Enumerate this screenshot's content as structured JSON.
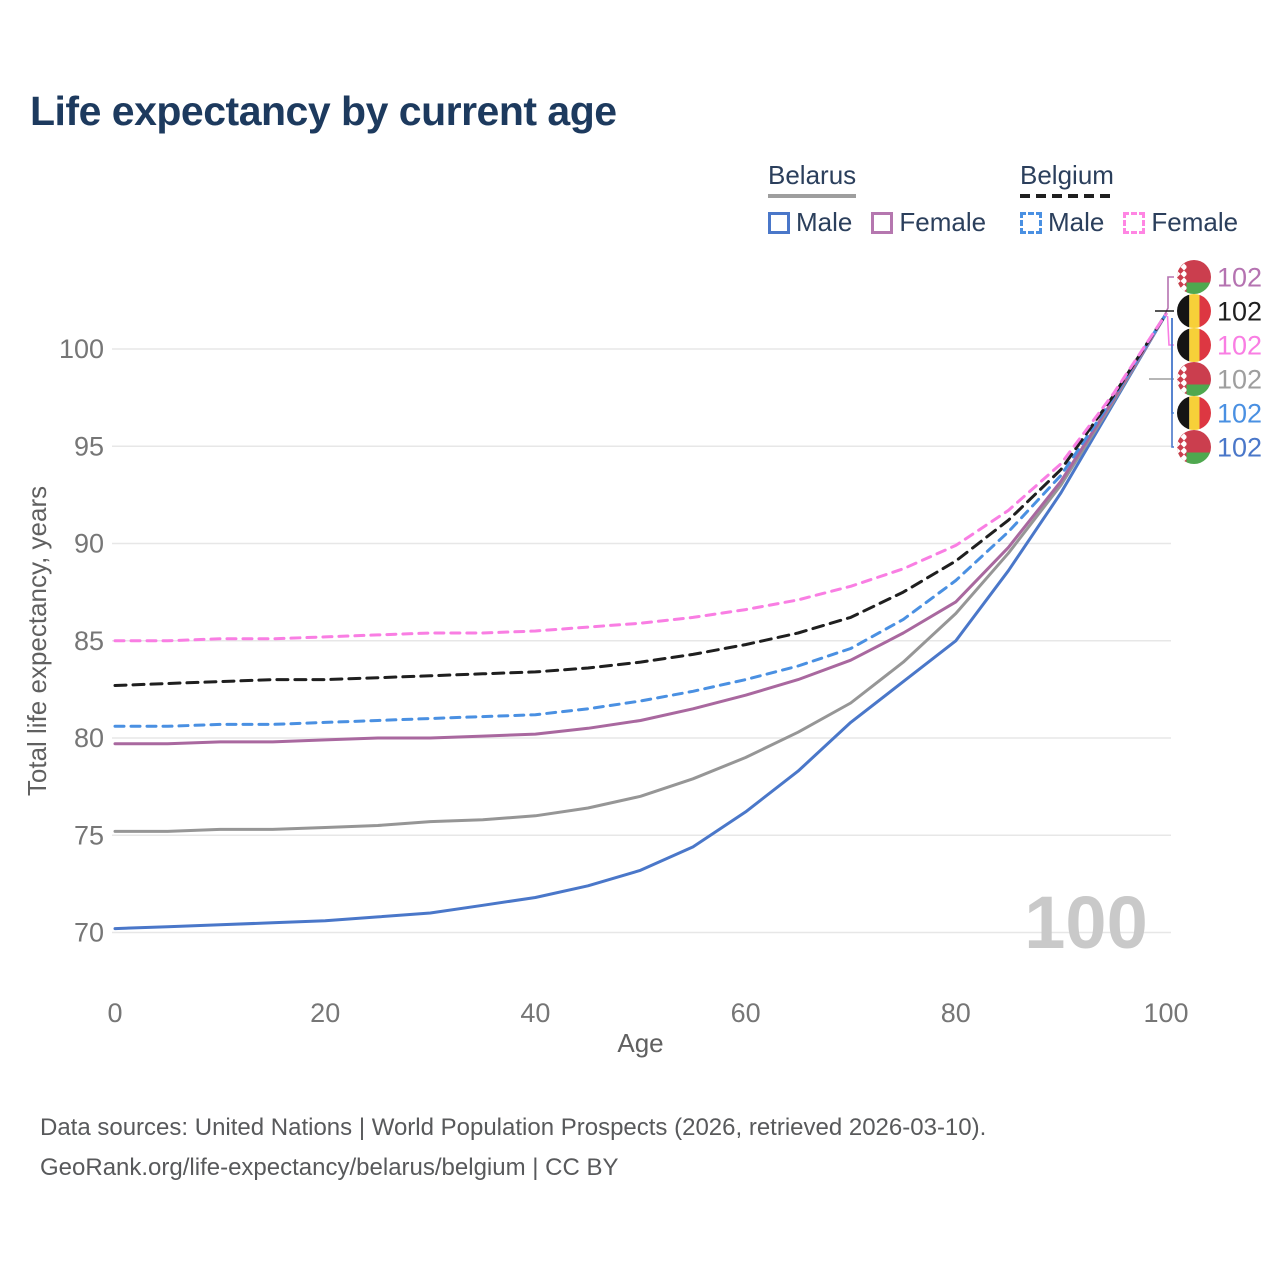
{
  "title": "Life expectancy by current age",
  "watermark": "100",
  "colors": {
    "title_text": "#1d3a5e",
    "legend_text": "#2b3f5c",
    "axis_tick_text": "#767676",
    "axis_title_text": "#606060",
    "grid_line": "#e7e7e7",
    "watermark_text": "#c9c9c9",
    "footer_text": "#58595b",
    "belarus_male": "#4a77c9",
    "belarus_female": "#a9689f",
    "belarus_both": "#969696",
    "belgium_male": "#4a90e2",
    "belgium_both": "#1f1f1f",
    "belgium_female": "#f97ee3"
  },
  "legend": {
    "groups": [
      {
        "label": "Belarus",
        "underline_color": "#9e9e9e",
        "dashed": false,
        "items": [
          {
            "label": "Male",
            "color": "#4a77c9",
            "dashed": false
          },
          {
            "label": "Female",
            "color": "#b577af",
            "dashed": false
          }
        ]
      },
      {
        "label": "Belgium",
        "underline_color": "#1f1f1f",
        "dashed": true,
        "items": [
          {
            "label": "Male",
            "color": "#4a90e2",
            "dashed": true
          },
          {
            "label": "Female",
            "color": "#ff85e3",
            "dashed": true
          }
        ]
      }
    ]
  },
  "chart_data": {
    "type": "line",
    "title": "Life expectancy by current age",
    "xlabel": "Age",
    "ylabel": "Total life expectancy, years",
    "xlim": [
      0,
      100
    ],
    "ylim": [
      69,
      103
    ],
    "x_ticks": [
      "0",
      "20",
      "40",
      "60",
      "80",
      "100"
    ],
    "y_ticks": [
      "70",
      "75",
      "80",
      "85",
      "90",
      "95",
      "100"
    ],
    "grid": "horizontal",
    "legend_position": "top-right",
    "x": [
      0,
      5,
      10,
      15,
      20,
      25,
      30,
      35,
      40,
      45,
      50,
      55,
      60,
      65,
      70,
      75,
      80,
      85,
      90,
      95,
      100
    ],
    "series": [
      {
        "name": "Belgium Female",
        "country": "Belgium",
        "sex": "Female",
        "color": "#f97ee3",
        "dashed": true,
        "values": [
          85.0,
          85.0,
          85.1,
          85.1,
          85.2,
          85.3,
          85.4,
          85.4,
          85.5,
          85.7,
          85.9,
          86.2,
          86.6,
          87.1,
          87.8,
          88.7,
          89.9,
          91.7,
          94.1,
          97.7,
          101.8
        ]
      },
      {
        "name": "Belgium",
        "country": "Belgium",
        "sex": "Both",
        "color": "#1f1f1f",
        "dashed": true,
        "values": [
          82.7,
          82.8,
          82.9,
          83.0,
          83.0,
          83.1,
          83.2,
          83.3,
          83.4,
          83.6,
          83.9,
          84.3,
          84.8,
          85.4,
          86.2,
          87.5,
          89.1,
          91.2,
          93.8,
          97.6,
          101.8
        ]
      },
      {
        "name": "Belgium Male",
        "country": "Belgium",
        "sex": "Male",
        "color": "#4a90e2",
        "dashed": true,
        "values": [
          80.6,
          80.6,
          80.7,
          80.7,
          80.8,
          80.9,
          81.0,
          81.1,
          81.2,
          81.5,
          81.9,
          82.4,
          83.0,
          83.7,
          84.6,
          86.1,
          88.1,
          90.6,
          93.5,
          97.5,
          101.8
        ]
      },
      {
        "name": "Belarus Female",
        "country": "Belarus",
        "sex": "Female",
        "color": "#a9689f",
        "dashed": false,
        "values": [
          79.7,
          79.7,
          79.8,
          79.8,
          79.9,
          80.0,
          80.0,
          80.1,
          80.2,
          80.5,
          80.9,
          81.5,
          82.2,
          83.0,
          84.0,
          85.4,
          87.0,
          89.8,
          93.2,
          97.4,
          101.8
        ]
      },
      {
        "name": "Belarus",
        "country": "Belarus",
        "sex": "Both",
        "color": "#969696",
        "dashed": false,
        "values": [
          75.2,
          75.2,
          75.3,
          75.3,
          75.4,
          75.5,
          75.7,
          75.8,
          76.0,
          76.4,
          77.0,
          77.9,
          79.0,
          80.3,
          81.8,
          83.9,
          86.4,
          89.5,
          93.0,
          97.3,
          101.8
        ]
      },
      {
        "name": "Belarus Male",
        "country": "Belarus",
        "sex": "Male",
        "color": "#4a77c9",
        "dashed": false,
        "values": [
          70.2,
          70.3,
          70.4,
          70.5,
          70.6,
          70.8,
          71.0,
          71.4,
          71.8,
          72.4,
          73.2,
          74.4,
          76.2,
          78.3,
          80.8,
          82.9,
          85.0,
          88.6,
          92.6,
          97.2,
          101.8
        ]
      }
    ]
  },
  "end_labels": [
    {
      "value": "102",
      "flag": "belarus",
      "color": "#b573b1",
      "series": "Belarus Female"
    },
    {
      "value": "102",
      "flag": "belgium",
      "color": "#1f1f1f",
      "series": "Belgium"
    },
    {
      "value": "102",
      "flag": "belgium",
      "color": "#f97ee3",
      "series": "Belgium Female"
    },
    {
      "value": "102",
      "flag": "belarus",
      "color": "#9e9e9e",
      "series": "Belarus"
    },
    {
      "value": "102",
      "flag": "belgium",
      "color": "#4a90e2",
      "series": "Belgium Male"
    },
    {
      "value": "102",
      "flag": "belarus",
      "color": "#4a77c9",
      "series": "Belarus Male"
    }
  ],
  "flags": {
    "belarus": {
      "red": "#cb3e4e",
      "green": "#4fa84f",
      "ornament_base": "#ffffff"
    },
    "belgium": {
      "black": "#141414",
      "yellow": "#f7d039",
      "red": "#dd3742"
    }
  },
  "footer": {
    "line1": "Data sources: United Nations | World Population Prospects (2026, retrieved 2026-03-10).",
    "line2": "GeoRank.org/life-expectancy/belarus/belgium | CC BY"
  }
}
